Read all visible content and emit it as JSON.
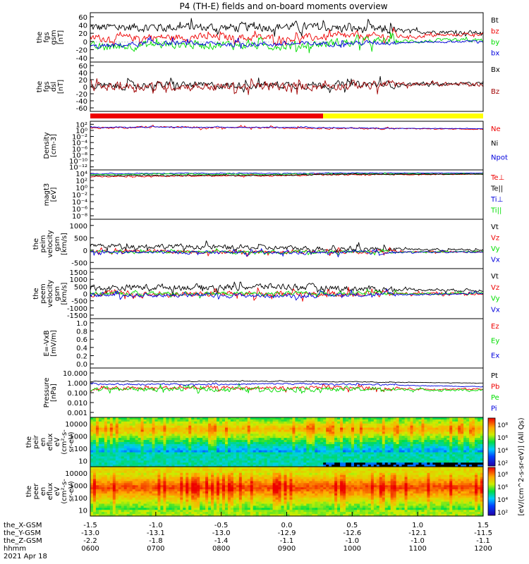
{
  "title": "P4 (TH-E) fields and on-board moments overview",
  "colors": {
    "black": "#000000",
    "red": "#ee0000",
    "green": "#00dd00",
    "blue": "#0000dd",
    "yellow": "#ffff00",
    "darkred": "#a00000"
  },
  "panels": [
    {
      "id": "fgs-gsm",
      "ylabel": [
        "the",
        "fgs",
        "gsm",
        "[nT]"
      ],
      "yticks": [
        "60",
        "40",
        "20",
        "0",
        "-20",
        "-40"
      ],
      "legend": [
        {
          "text": "Bt",
          "color": "black"
        },
        {
          "text": "bz",
          "color": "red"
        },
        {
          "text": "by",
          "color": "green"
        },
        {
          "text": "bx",
          "color": "blue"
        }
      ]
    },
    {
      "id": "fgs-dsl",
      "ylabel": [
        "the",
        "fgs",
        "dsl",
        "[nT]"
      ],
      "yticks": [
        "60",
        "40",
        "20",
        "0",
        "-20",
        "-40",
        "-60"
      ],
      "legend": [
        {
          "text": "Bx",
          "color": "black"
        },
        {
          "text": "Bz",
          "color": "darkred"
        }
      ]
    },
    {
      "id": "density",
      "ylabel": [
        "Density",
        "[cm-3]"
      ],
      "yticks": [
        "10²",
        "10⁰",
        "10⁻²",
        "10⁻⁴",
        "10⁻⁶",
        "10⁻⁸",
        "10⁻¹⁰",
        "10⁻¹²"
      ],
      "legend": [
        {
          "text": "Ne",
          "color": "red"
        },
        {
          "text": "Ni",
          "color": "black"
        },
        {
          "text": "Npot",
          "color": "blue"
        }
      ]
    },
    {
      "id": "temp",
      "ylabel": [
        "magt3",
        "[eV]"
      ],
      "yticks": [
        "10⁴",
        "10²",
        "10⁰",
        "10⁻²",
        "10⁻⁴",
        "10⁻⁶",
        "10⁻⁸"
      ],
      "legend": [
        {
          "text": "Te⊥",
          "color": "red"
        },
        {
          "text": "Te||",
          "color": "black"
        },
        {
          "text": "Ti⊥",
          "color": "blue"
        },
        {
          "text": "Ti||",
          "color": "green"
        }
      ]
    },
    {
      "id": "peim-vel",
      "ylabel": [
        "the",
        "peim",
        "velocity",
        "gsm",
        "[km/s]"
      ],
      "yticks": [
        "1000",
        "500",
        "0",
        "-500"
      ],
      "legend": [
        {
          "text": "Vt",
          "color": "black"
        },
        {
          "text": "Vz",
          "color": "red"
        },
        {
          "text": "Vy",
          "color": "green"
        },
        {
          "text": "Vx",
          "color": "blue"
        }
      ]
    },
    {
      "id": "peem-vel",
      "ylabel": [
        "the",
        "peem",
        "velocity",
        "gsm",
        "[km/s]"
      ],
      "yticks": [
        "1500",
        "1000",
        "500",
        "0",
        "-500",
        "-1000",
        "-1500"
      ],
      "legend": [
        {
          "text": "Vt",
          "color": "black"
        },
        {
          "text": "Vz",
          "color": "red"
        },
        {
          "text": "Vy",
          "color": "green"
        },
        {
          "text": "Vx",
          "color": "blue"
        }
      ]
    },
    {
      "id": "efield",
      "ylabel": [
        "E=-VxB",
        "[mV/m]"
      ],
      "yticks": [
        "1.0",
        "0.8",
        "0.6",
        "0.4",
        "0.2",
        "0.0"
      ],
      "legend": [
        {
          "text": "Ez",
          "color": "red"
        },
        {
          "text": "Ey",
          "color": "green"
        },
        {
          "text": "Ex",
          "color": "blue"
        }
      ]
    },
    {
      "id": "pressure",
      "ylabel": [
        "Pressure",
        "[nPa]"
      ],
      "yticks": [
        "10.000",
        "1.000",
        "0.100",
        "0.010",
        "0.001"
      ],
      "legend": [
        {
          "text": "Pt",
          "color": "black"
        },
        {
          "text": "Pb",
          "color": "red"
        },
        {
          "text": "Pe",
          "color": "green"
        },
        {
          "text": "Pi",
          "color": "blue"
        }
      ]
    },
    {
      "id": "peir-spec",
      "ylabel": [
        "the",
        "peir",
        "en",
        "eflux",
        "eV",
        "(cm²-s-",
        "sr-eV)"
      ],
      "yticks": [
        "10000",
        "1000",
        "100",
        "10"
      ]
    },
    {
      "id": "peer-spec",
      "ylabel": [
        "the",
        "peer",
        "en",
        "eflux",
        "eV",
        "(cm²-s-",
        "sr-eV)"
      ],
      "yticks": [
        "10000",
        "1000",
        "100",
        "10"
      ]
    }
  ],
  "colorbars": [
    {
      "ticks": [
        "10⁸",
        "10⁶",
        "10⁴",
        "10²"
      ]
    },
    {
      "ticks": [
        "10⁸",
        "10⁶",
        "10⁴",
        "10²"
      ]
    }
  ],
  "colorbar_label": "[eV/(cm^2-s-sr-eV)] (All Qs)",
  "xaxis": {
    "row_labels": [
      "the_X-GSM",
      "the_Y-GSM",
      "the_Z-GSM",
      "hhmm",
      "2021 Apr 18"
    ],
    "columns": [
      [
        "-1.5",
        "-13.0",
        "-2.2",
        "0600"
      ],
      [
        "-1.0",
        "-13.1",
        "-1.8",
        "0700"
      ],
      [
        "-0.5",
        "-13.0",
        "-1.4",
        "0800"
      ],
      [
        "0.0",
        "-12.9",
        "-1.1",
        "0900"
      ],
      [
        "0.5",
        "-12.6",
        "-1.0",
        "1000"
      ],
      [
        "1.0",
        "-12.1",
        "-1.0",
        "1100"
      ],
      [
        "1.5",
        "-11.5",
        "-1.1",
        "1200"
      ]
    ]
  },
  "chart_data": {
    "type": "line",
    "title": "P4 (TH-E) fields and on-board moments overview",
    "x_range": [
      "2021-04-18 06:00",
      "2021-04-18 12:00"
    ],
    "x_ticks": [
      "0600",
      "0700",
      "0800",
      "0900",
      "1000",
      "1100",
      "1200"
    ],
    "panels": [
      {
        "name": "the fgs gsm [nT]",
        "ylim": [
          -40,
          60
        ],
        "series": [
          {
            "name": "Bt",
            "color": "#000000",
            "typical": [
              30,
              32,
              30,
              33,
              28,
              22,
              20
            ],
            "noise": 15
          },
          {
            "name": "bz",
            "color": "#ee0000",
            "typical": [
              8,
              10,
              10,
              8,
              12,
              12,
              18
            ],
            "noise": 12
          },
          {
            "name": "by",
            "color": "#00dd00",
            "typical": [
              -12,
              -5,
              -5,
              -8,
              0,
              2,
              4
            ],
            "noise": 14
          },
          {
            "name": "bx",
            "color": "#0000dd",
            "typical": [
              -10,
              -2,
              -4,
              -4,
              -2,
              0,
              2
            ],
            "noise": 8
          }
        ]
      },
      {
        "name": "the fgs dsl [nT]",
        "ylim": [
          -70,
          60
        ],
        "series": [
          {
            "name": "Bx",
            "color": "#000000",
            "typical": [
              -5,
              0,
              -2,
              0,
              0,
              2,
              3
            ],
            "noise": 15
          },
          {
            "name": "Bz",
            "color": "#a00000",
            "typical": [
              -5,
              -3,
              -5,
              -5,
              0,
              2,
              2
            ],
            "noise": 18
          }
        ]
      },
      {
        "name": "Density [cm-3]",
        "ylim": [
          -12,
          2
        ],
        "log": true,
        "series": [
          {
            "name": "Ne",
            "color": "#ee0000",
            "typical": [
              0.2,
              0.5,
              0.3,
              0.3,
              0.1,
              0.0,
              -0.2
            ],
            "noise": 0.4
          },
          {
            "name": "Npot",
            "color": "#0000dd",
            "typical": [
              0.4,
              0.5,
              0.4,
              0.4,
              0.2,
              0.1,
              0.0
            ],
            "noise": 0.2
          }
        ]
      },
      {
        "name": "magt3 [eV]",
        "ylim": [
          -8,
          4
        ],
        "log": true,
        "series": [
          {
            "name": "Ti⊥",
            "color": "#0000dd",
            "typical": [
              3.2,
              3.3,
              3.3,
              3.3,
              3.4,
              3.4,
              3.4
            ],
            "noise": 0.15
          },
          {
            "name": "Ti||",
            "color": "#00dd00",
            "typical": [
              3.0,
              3.1,
              3.1,
              3.1,
              3.2,
              3.2,
              3.2
            ],
            "noise": 0.2
          },
          {
            "name": "Te⊥",
            "color": "#ee0000",
            "typical": [
              2.6,
              2.6,
              2.7,
              2.8,
              3.0,
              3.0,
              3.1
            ],
            "noise": 0.25
          },
          {
            "name": "Te||",
            "color": "#000000",
            "typical": [
              2.7,
              2.8,
              2.8,
              2.9,
              3.1,
              3.1,
              3.1
            ],
            "noise": 0.2
          }
        ]
      },
      {
        "name": "the peim velocity gsm [km/s]",
        "ylim": [
          -500,
          1000
        ],
        "series": [
          {
            "name": "Vt",
            "color": "#000000",
            "typical": [
              200,
              180,
              150,
              120,
              100,
              80,
              50
            ],
            "noise": 120
          },
          {
            "name": "Vz",
            "color": "#ee0000",
            "typical": [
              20,
              20,
              0,
              10,
              0,
              0,
              0
            ],
            "noise": 90
          },
          {
            "name": "Vy",
            "color": "#00dd00",
            "typical": [
              0,
              0,
              0,
              0,
              0,
              0,
              0
            ],
            "noise": 70
          },
          {
            "name": "Vx",
            "color": "#0000dd",
            "typical": [
              -20,
              -10,
              -20,
              -30,
              -20,
              -10,
              0
            ],
            "noise": 80
          }
        ]
      },
      {
        "name": "the peem velocity gsm [km/s]",
        "ylim": [
          -1500,
          1500
        ],
        "series": [
          {
            "name": "Vt",
            "color": "#000000",
            "typical": [
              350,
              400,
              400,
              450,
              300,
              250,
              200
            ],
            "noise": 300
          },
          {
            "name": "Vz",
            "color": "#ee0000",
            "typical": [
              0,
              -50,
              0,
              -50,
              0,
              0,
              0
            ],
            "noise": 300
          },
          {
            "name": "Vy",
            "color": "#00dd00",
            "typical": [
              0,
              0,
              0,
              0,
              0,
              0,
              0
            ],
            "noise": 200
          },
          {
            "name": "Vx",
            "color": "#0000dd",
            "typical": [
              -100,
              -100,
              -100,
              -150,
              -50,
              -50,
              0
            ],
            "noise": 200
          }
        ]
      },
      {
        "name": "E=-VxB [mV/m]",
        "ylim": [
          0,
          1
        ],
        "series": []
      },
      {
        "name": "Pressure [nPa]",
        "ylim": [
          -3,
          1
        ],
        "log": true,
        "series": [
          {
            "name": "Pt",
            "color": "#000000",
            "typical": [
              -0.05,
              -0.05,
              -0.05,
              -0.05,
              -0.1,
              -0.15,
              -0.2
            ],
            "noise": 0.05
          },
          {
            "name": "Pb",
            "color": "#ee0000",
            "typical": [
              -0.7,
              -0.6,
              -0.6,
              -0.6,
              -0.6,
              -0.7,
              -0.7
            ],
            "noise": 0.25
          },
          {
            "name": "Pe",
            "color": "#00dd00",
            "typical": [
              -0.7,
              -0.7,
              -0.7,
              -0.7,
              -0.7,
              -0.75,
              -0.8
            ],
            "noise": 0.3
          },
          {
            "name": "Pi",
            "color": "#0000dd",
            "typical": [
              -0.3,
              -0.3,
              -0.3,
              -0.25,
              -0.3,
              -0.4,
              -0.5
            ],
            "noise": 0.1
          }
        ]
      }
    ],
    "spectrograms": [
      {
        "name": "the peir en eflux",
        "y_range_eV": [
          5,
          30000
        ],
        "log": true
      },
      {
        "name": "the peer en eflux",
        "y_range_eV": [
          5,
          30000
        ],
        "log": true
      }
    ]
  }
}
